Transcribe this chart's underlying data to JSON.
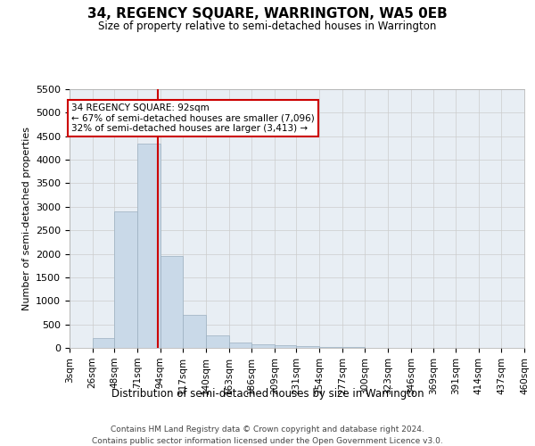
{
  "title": "34, REGENCY SQUARE, WARRINGTON, WA5 0EB",
  "subtitle": "Size of property relative to semi-detached houses in Warrington",
  "xlabel": "Distribution of semi-detached houses by size in Warrington",
  "ylabel": "Number of semi-detached properties",
  "footer_line1": "Contains HM Land Registry data © Crown copyright and database right 2024.",
  "footer_line2": "Contains public sector information licensed under the Open Government Licence v3.0.",
  "annotation_title": "34 REGENCY SQUARE: 92sqm",
  "annotation_line1": "← 67% of semi-detached houses are smaller (7,096)",
  "annotation_line2": "32% of semi-detached houses are larger (3,413) →",
  "bar_edges": [
    3,
    26,
    48,
    71,
    94,
    117,
    140,
    163,
    186,
    209,
    231,
    254,
    277,
    300,
    323,
    346,
    369,
    391,
    414,
    437,
    460
  ],
  "bar_heights": [
    0,
    200,
    2900,
    4350,
    1950,
    700,
    270,
    120,
    80,
    50,
    30,
    15,
    10,
    5,
    3,
    2,
    1,
    1,
    0,
    0
  ],
  "bar_color": "#c9d9e8",
  "bar_edge_color": "#9bafc0",
  "red_line_x": 92,
  "annotation_box_color": "#ffffff",
  "annotation_box_edge": "#cc0000",
  "ylim": [
    0,
    5500
  ],
  "yticks": [
    0,
    500,
    1000,
    1500,
    2000,
    2500,
    3000,
    3500,
    4000,
    4500,
    5000,
    5500
  ],
  "grid_color": "#cccccc",
  "background_color": "#e8eef4",
  "fig_width": 6.0,
  "fig_height": 5.0,
  "dpi": 100
}
